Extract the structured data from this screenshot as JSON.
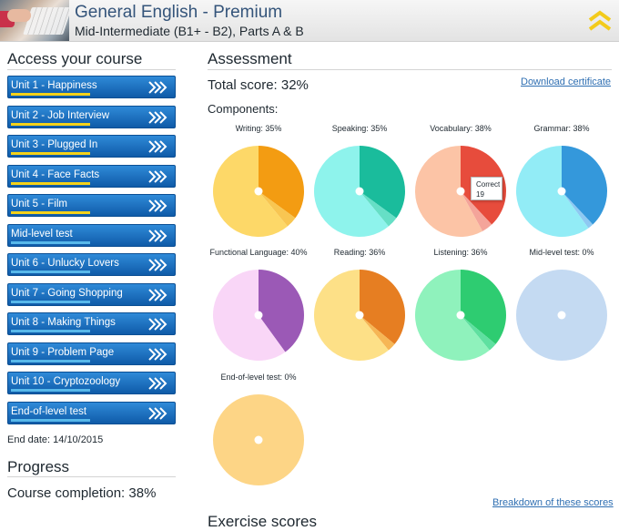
{
  "header": {
    "title": "General English - Premium",
    "subtitle": "Mid-Intermediate (B1+ - B2), Parts A & B"
  },
  "sidebar": {
    "heading": "Access your course",
    "units": [
      {
        "label": "Unit 1 - Happiness",
        "progress": 0.47,
        "bar_color": "#f4d21a"
      },
      {
        "label": "Unit 2 - Job Interview",
        "progress": 0.47,
        "bar_color": "#f4d21a"
      },
      {
        "label": "Unit 3 - Plugged In",
        "progress": 0.47,
        "bar_color": "#f4d21a"
      },
      {
        "label": "Unit 4 - Face Facts",
        "progress": 0.47,
        "bar_color": "#f4d21a"
      },
      {
        "label": "Unit 5 - Film",
        "progress": 0.47,
        "bar_color": "#f4d21a"
      },
      {
        "label": "Mid-level test",
        "progress": 0.47,
        "bar_color": "#57b8ea"
      },
      {
        "label": "Unit 6 - Unlucky Lovers",
        "progress": 0.47,
        "bar_color": "#57b8ea"
      },
      {
        "label": "Unit 7 - Going Shopping",
        "progress": 0.47,
        "bar_color": "#57b8ea"
      },
      {
        "label": "Unit 8 - Making Things",
        "progress": 0.47,
        "bar_color": "#57b8ea"
      },
      {
        "label": "Unit 9 - Problem Page",
        "progress": 0.47,
        "bar_color": "#57b8ea"
      },
      {
        "label": "Unit 10 - Cryptozoology",
        "progress": 0.47,
        "bar_color": "#57b8ea"
      },
      {
        "label": "End-of-level test",
        "progress": 0.47,
        "bar_color": "#57b8ea"
      }
    ],
    "end_date": "End date: 14/10/2015"
  },
  "progress": {
    "heading": "Progress",
    "completion": "Course completion: 38%"
  },
  "assessment": {
    "heading": "Assessment",
    "total_score": "Total score: 32%",
    "download_link": "Download certificate",
    "components_label": "Components:",
    "breakdown_link": "Breakdown of these scores",
    "tooltip": {
      "line1": "Correct",
      "line2": "19"
    }
  },
  "exercise": {
    "heading": "Exercise scores"
  },
  "chart_data": {
    "type": "pie",
    "charts": [
      {
        "title": "Writing: 35%",
        "correct": 35,
        "incorrect": 4,
        "unanswered": 61,
        "colors": [
          "#f39c12",
          "#f8c652",
          "#fdd868"
        ]
      },
      {
        "title": "Speaking: 35%",
        "correct": 35,
        "incorrect": 4,
        "unanswered": 61,
        "colors": [
          "#1abc9c",
          "#66dfc6",
          "#8ef3ec"
        ]
      },
      {
        "title": "Vocabulary: 38%",
        "correct": 38,
        "incorrect": 4,
        "unanswered": 58,
        "colors": [
          "#e74c3c",
          "#f4a49a",
          "#fcc4a6"
        ]
      },
      {
        "title": "Grammar: 38%",
        "correct": 38,
        "incorrect": 2,
        "unanswered": 60,
        "colors": [
          "#3498db",
          "#8ec9f2",
          "#92ecf6"
        ]
      },
      {
        "title": "Functional Language: 40%",
        "correct": 40,
        "incorrect": 0,
        "unanswered": 60,
        "colors": [
          "#9b59b6",
          "#c98fe0",
          "#f9d6f7"
        ]
      },
      {
        "title": "Reading: 36%",
        "correct": 36,
        "incorrect": 3,
        "unanswered": 61,
        "colors": [
          "#e67e22",
          "#f6b655",
          "#fde087"
        ]
      },
      {
        "title": "Listening: 36%",
        "correct": 36,
        "incorrect": 3,
        "unanswered": 61,
        "colors": [
          "#2ecc71",
          "#5fe0a0",
          "#8ff2bc"
        ]
      },
      {
        "title": "Mid-level test: 0%",
        "correct": 0,
        "incorrect": 0,
        "unanswered": 100,
        "colors": [
          "#3498db",
          "#8ec9f2",
          "#c4daf2"
        ]
      },
      {
        "title": "End-of-level test: 0%",
        "correct": 0,
        "incorrect": 0,
        "unanswered": 100,
        "colors": [
          "#f39c12",
          "#f8c652",
          "#fdd586"
        ]
      }
    ]
  }
}
